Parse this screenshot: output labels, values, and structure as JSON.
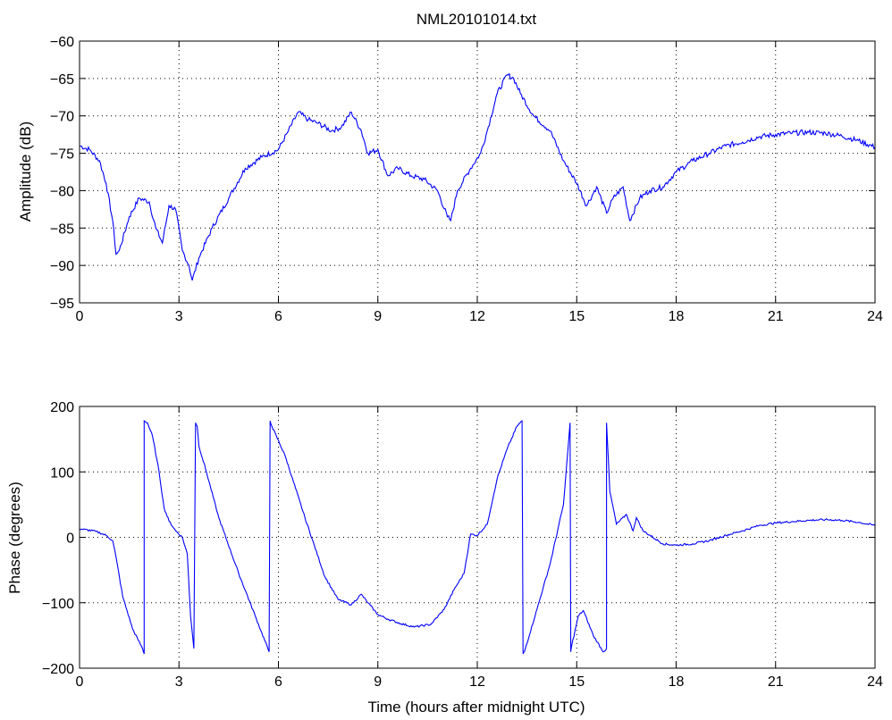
{
  "figure_title": "NML20101014.txt",
  "chart_data": [
    {
      "type": "line",
      "title": "NML20101014.txt",
      "xlabel": "",
      "ylabel": "Amplitude (dB)",
      "xlim": [
        0,
        24
      ],
      "ylim": [
        -95,
        -60
      ],
      "xticks": [
        "0",
        "3",
        "6",
        "9",
        "12",
        "15",
        "18",
        "21",
        "24"
      ],
      "yticks": [
        "-60",
        "-65",
        "-70",
        "-75",
        "-80",
        "-85",
        "-90",
        "-95"
      ],
      "grid": true,
      "line_color": "#0000ff",
      "series": [
        {
          "x": [
            0,
            0.3,
            0.6,
            0.8,
            1.0,
            1.1,
            1.2,
            1.5,
            1.8,
            2.1,
            2.3,
            2.5,
            2.7,
            2.9,
            3.1,
            3.3,
            3.4,
            3.6,
            4.0,
            4.5,
            5.0,
            5.5,
            6.0,
            6.3,
            6.6,
            6.9,
            7.2,
            7.6,
            7.9,
            8.2,
            8.5,
            8.7,
            9.0,
            9.3,
            9.6,
            10.0,
            10.4,
            10.8,
            11.1,
            11.2,
            11.4,
            11.8,
            12.1,
            12.3,
            12.6,
            12.9,
            13.1,
            13.3,
            13.7,
            14.2,
            14.6,
            15.0,
            15.3,
            15.6,
            15.9,
            16.1,
            16.4,
            16.6,
            16.9,
            17.2,
            17.6,
            18.0,
            18.5,
            19.0,
            19.5,
            20.0,
            20.5,
            21.0,
            21.5,
            22.0,
            22.5,
            23.0,
            23.5,
            24.0
          ],
          "y": [
            -74,
            -74.5,
            -76,
            -79,
            -84,
            -88.5,
            -88,
            -83.5,
            -81,
            -81.5,
            -85,
            -87,
            -82,
            -82.5,
            -88,
            -90,
            -92,
            -89,
            -85,
            -81,
            -77,
            -75.5,
            -74.5,
            -72,
            -69.5,
            -70.5,
            -71,
            -72,
            -71.5,
            -69.5,
            -72,
            -75,
            -74.5,
            -78,
            -77,
            -78,
            -78.5,
            -80,
            -83.5,
            -84,
            -80,
            -77,
            -75,
            -72,
            -67,
            -64.5,
            -65,
            -67,
            -70,
            -72,
            -76,
            -79,
            -82,
            -79.5,
            -83,
            -81,
            -79.5,
            -84,
            -81,
            -80,
            -79.5,
            -77.5,
            -76,
            -75,
            -74,
            -73.5,
            -72.8,
            -72.5,
            -72.3,
            -72.2,
            -72.3,
            -72.7,
            -73.3,
            -74.2
          ]
        }
      ]
    },
    {
      "type": "line",
      "title": "",
      "xlabel": "Time (hours after midnight UTC)",
      "ylabel": "Phase (degrees)",
      "xlim": [
        0,
        24
      ],
      "ylim": [
        -200,
        200
      ],
      "xticks": [
        "0",
        "3",
        "6",
        "9",
        "12",
        "15",
        "18",
        "21",
        "24"
      ],
      "yticks": [
        "200",
        "100",
        "0",
        "-100",
        "-200"
      ],
      "grid": true,
      "line_color": "#0000ff",
      "series": [
        {
          "segments": [
            {
              "x": [
                0,
                0.5,
                0.8,
                1.0,
                1.1,
                1.3,
                1.6,
                1.9,
                1.95
              ],
              "y": [
                13,
                9,
                3,
                -5,
                -30,
                -90,
                -140,
                -170,
                -178
              ]
            },
            {
              "x": [
                1.95,
                2.05,
                2.2,
                2.4,
                2.55,
                2.7,
                2.9,
                3.1,
                3.25,
                3.35,
                3.45
              ],
              "y": [
                178,
                175,
                155,
                100,
                45,
                25,
                10,
                0,
                -25,
                -120,
                -170
              ]
            },
            {
              "x": [
                3.5,
                3.55,
                3.6,
                3.8,
                4.2,
                4.8,
                5.3,
                5.72
              ],
              "y": [
                175,
                170,
                140,
                105,
                30,
                -55,
                -120,
                -175
              ]
            },
            {
              "x": [
                5.75,
                5.8,
                6.2,
                6.8,
                7.4,
                7.8,
                8.2,
                8.5,
                8.7,
                9.0,
                9.3,
                9.7,
                10.1,
                10.6,
                11.0,
                11.3,
                11.6,
                11.8,
                12.0,
                12.3,
                12.6,
                12.9,
                13.2,
                13.35
              ],
              "y": [
                178,
                170,
                125,
                30,
                -60,
                -95,
                -103,
                -87,
                -100,
                -118,
                -125,
                -132,
                -137,
                -133,
                -110,
                -80,
                -55,
                5,
                3,
                20,
                90,
                135,
                170,
                178
              ]
            },
            {
              "x": [
                13.38,
                13.42,
                13.8,
                14.2,
                14.6,
                14.8
              ],
              "y": [
                -178,
                -175,
                -110,
                -40,
                50,
                175
              ]
            },
            {
              "x": [
                14.82,
                14.85,
                15.05,
                15.2,
                15.5,
                15.8,
                15.9
              ],
              "y": [
                -175,
                -165,
                -120,
                -112,
                -150,
                -175,
                -170
              ]
            },
            {
              "x": [
                15.9,
                16.0,
                16.2,
                16.5,
                16.7,
                16.8,
                17.0,
                17.3,
                17.6,
                18.0,
                18.5,
                19.0,
                19.5,
                20.0,
                20.5,
                21.0,
                21.5,
                22.0,
                22.5,
                23.0,
                23.5,
                24.0
              ],
              "y": [
                175,
                70,
                20,
                35,
                10,
                30,
                10,
                0,
                -10,
                -12,
                -10,
                -5,
                3,
                10,
                18,
                22,
                24,
                26,
                27,
                26,
                23,
                18
              ]
            }
          ]
        }
      ]
    }
  ]
}
